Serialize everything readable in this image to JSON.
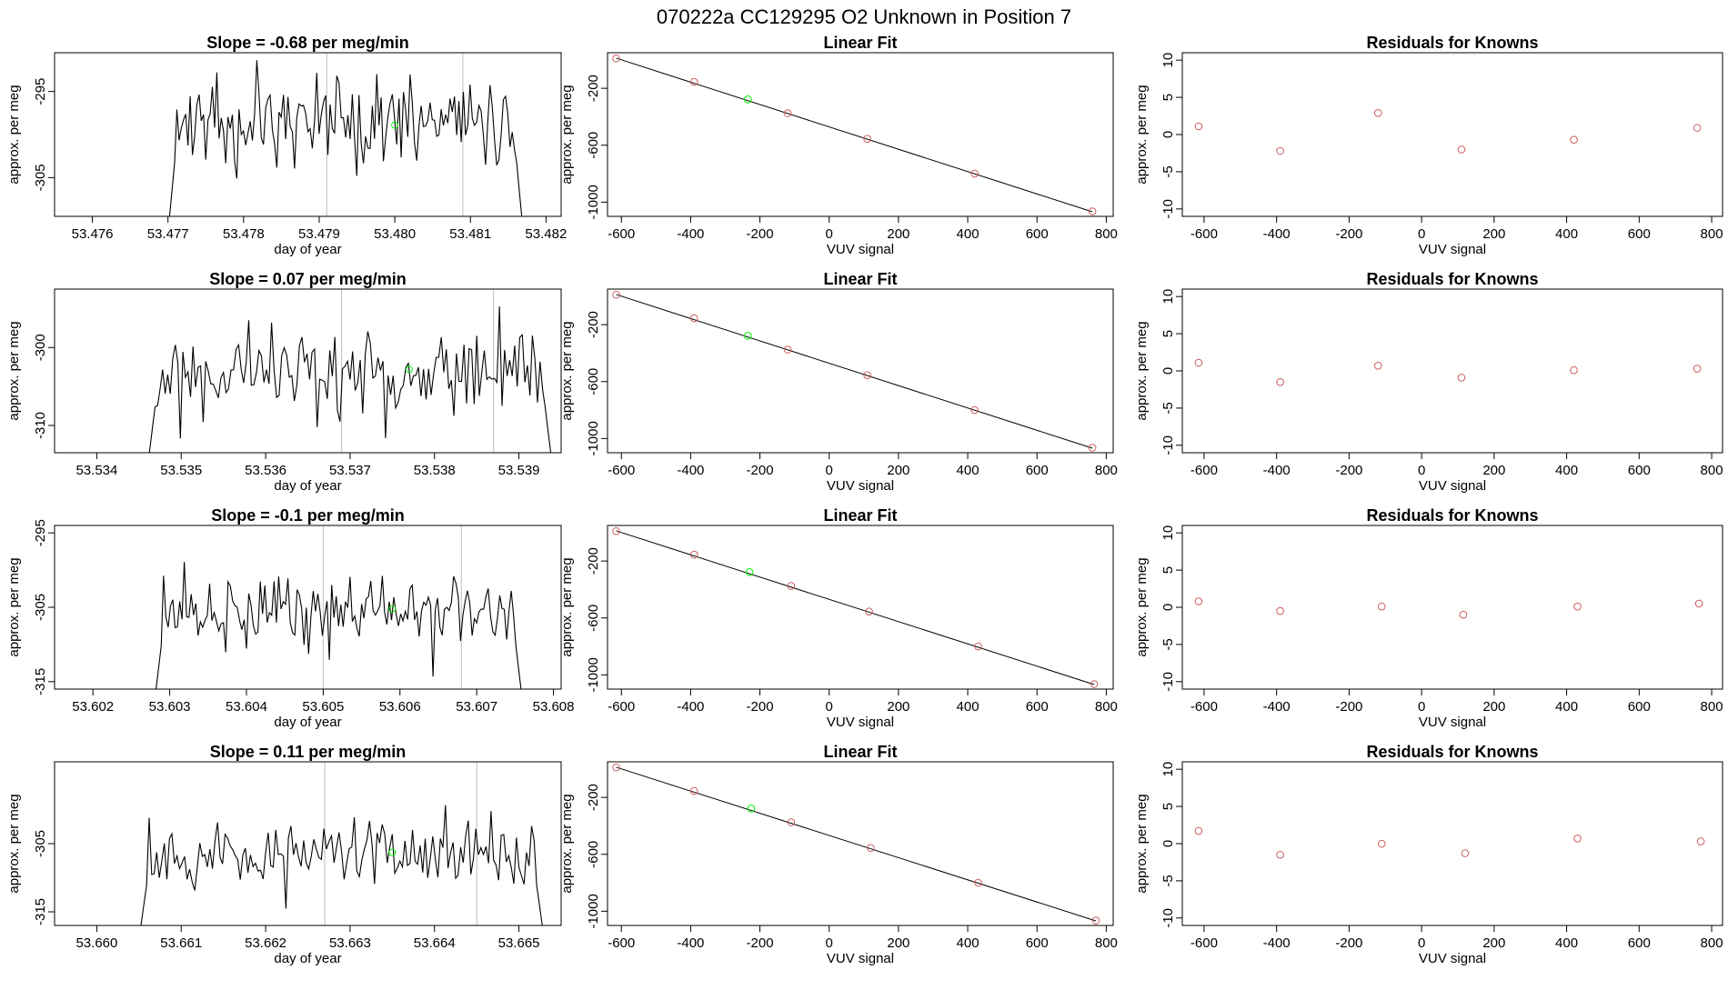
{
  "main_title": "070222a      CC129295   O2 Unknown in Position  7",
  "colors": {
    "line": "#000000",
    "known": "#cd5c5c",
    "unknown": "#00ee00",
    "vline": "#bebebe",
    "axis": "#000000"
  },
  "chart_data": [
    {
      "type": "line",
      "panel": "time-series",
      "row": 1,
      "title": "Slope =  -0.68  per meg/min",
      "xlabel": "day of year",
      "ylabel": "approx. per meg",
      "xlim": [
        53.4755,
        53.4822
      ],
      "ylim": [
        -309.5,
        -290.5
      ],
      "xticks": [
        "53.476",
        "53.477",
        "53.478",
        "53.479",
        "53.480",
        "53.481",
        "53.482"
      ],
      "yticks": [
        "-295",
        "-305"
      ],
      "xstart": 53.477,
      "xend": 53.4817,
      "level": -298.5,
      "noise_amp": 4.5,
      "seed": 11,
      "vlines": [
        53.4791,
        53.4809
      ],
      "green_point": {
        "x": 53.48,
        "y": -298.9
      }
    },
    {
      "type": "scatter+fit",
      "panel": "linear-fit",
      "row": 1,
      "title": "Linear Fit",
      "xlabel": "VUV signal",
      "ylabel": "approx. per meg",
      "xlim": [
        -640,
        820
      ],
      "ylim": [
        -1100,
        50
      ],
      "xticks": [
        "-600",
        "-400",
        "-200",
        "0",
        "200",
        "400",
        "600",
        "800"
      ],
      "yticks": [
        "-200",
        "-600",
        "-1000"
      ],
      "known_points": [
        [
          -615,
          10
        ],
        [
          -390,
          -155
        ],
        [
          -120,
          -375
        ],
        [
          110,
          -555
        ],
        [
          420,
          -800
        ],
        [
          760,
          -1065
        ]
      ],
      "unknown_point": [
        -235,
        -278
      ],
      "fit": [
        [
          -615,
          12
        ],
        [
          760,
          -1068
        ]
      ]
    },
    {
      "type": "scatter",
      "panel": "residuals",
      "row": 1,
      "title": "Residuals for Knowns",
      "xlabel": "VUV signal",
      "ylabel": "approx. per meg",
      "xlim": [
        -660,
        830
      ],
      "ylim": [
        -11,
        11
      ],
      "xticks": [
        "-600",
        "-400",
        "-200",
        "0",
        "200",
        "400",
        "600",
        "800"
      ],
      "yticks": [
        "10",
        "5",
        "0",
        "-5",
        "-10"
      ],
      "points": [
        [
          -615,
          1.1
        ],
        [
          -390,
          -2.2
        ],
        [
          -120,
          2.9
        ],
        [
          110,
          -2.0
        ],
        [
          420,
          -0.7
        ],
        [
          760,
          0.9
        ]
      ]
    },
    {
      "type": "line",
      "panel": "time-series",
      "row": 2,
      "title": "Slope =  0.07  per meg/min",
      "xlabel": "day of year",
      "ylabel": "approx. per meg",
      "xlim": [
        53.5335,
        53.5395
      ],
      "ylim": [
        -313.5,
        -292.5
      ],
      "xticks": [
        "53.534",
        "53.535",
        "53.536",
        "53.537",
        "53.538",
        "53.539"
      ],
      "yticks": [
        "-300",
        "-310"
      ],
      "xstart": 53.5346,
      "xend": 53.5394,
      "level": -303,
      "noise_amp": 4.2,
      "seed": 23,
      "vlines": [
        53.5369,
        53.5387
      ],
      "green_point": {
        "x": 53.5377,
        "y": -302.8
      }
    },
    {
      "type": "scatter+fit",
      "panel": "linear-fit",
      "row": 2,
      "title": "Linear Fit",
      "xlabel": "VUV signal",
      "ylabel": "approx. per meg",
      "xlim": [
        -640,
        820
      ],
      "ylim": [
        -1100,
        50
      ],
      "xticks": [
        "-600",
        "-400",
        "-200",
        "0",
        "200",
        "400",
        "600",
        "800"
      ],
      "yticks": [
        "-200",
        "-600",
        "-1000"
      ],
      "known_points": [
        [
          -615,
          10
        ],
        [
          -390,
          -155
        ],
        [
          -120,
          -375
        ],
        [
          110,
          -555
        ],
        [
          420,
          -800
        ],
        [
          760,
          -1065
        ]
      ],
      "unknown_point": [
        -235,
        -278
      ],
      "fit": [
        [
          -615,
          12
        ],
        [
          760,
          -1068
        ]
      ]
    },
    {
      "type": "scatter",
      "panel": "residuals",
      "row": 2,
      "title": "Residuals for Knowns",
      "xlabel": "VUV signal",
      "ylabel": "approx. per meg",
      "xlim": [
        -660,
        830
      ],
      "ylim": [
        -11,
        11
      ],
      "xticks": [
        "-600",
        "-400",
        "-200",
        "0",
        "200",
        "400",
        "600",
        "800"
      ],
      "yticks": [
        "10",
        "5",
        "0",
        "-5",
        "-10"
      ],
      "points": [
        [
          -615,
          1.1
        ],
        [
          -390,
          -1.5
        ],
        [
          -120,
          0.7
        ],
        [
          110,
          -0.9
        ],
        [
          420,
          0.1
        ],
        [
          760,
          0.3
        ]
      ]
    },
    {
      "type": "line",
      "panel": "time-series",
      "row": 3,
      "title": "Slope =  -0.1  per meg/min",
      "xlabel": "day of year",
      "ylabel": "approx. per meg",
      "xlim": [
        53.6015,
        53.6081
      ],
      "ylim": [
        -316,
        -294
      ],
      "xticks": [
        "53.602",
        "53.603",
        "53.604",
        "53.605",
        "53.606",
        "53.607",
        "53.608"
      ],
      "yticks": [
        "-295",
        "-305",
        "-315"
      ],
      "xstart": 53.6028,
      "xend": 53.6076,
      "level": -305.5,
      "noise_amp": 3.8,
      "seed": 37,
      "vlines": [
        53.605,
        53.6068
      ],
      "green_point": {
        "x": 53.6059,
        "y": -305.2
      }
    },
    {
      "type": "scatter+fit",
      "panel": "linear-fit",
      "row": 3,
      "title": "Linear Fit",
      "xlabel": "VUV signal",
      "ylabel": "approx. per meg",
      "xlim": [
        -640,
        820
      ],
      "ylim": [
        -1100,
        50
      ],
      "xticks": [
        "-600",
        "-400",
        "-200",
        "0",
        "200",
        "400",
        "600",
        "800"
      ],
      "yticks": [
        "-200",
        "-600",
        "-1000"
      ],
      "known_points": [
        [
          -615,
          10
        ],
        [
          -390,
          -155
        ],
        [
          -110,
          -375
        ],
        [
          115,
          -555
        ],
        [
          430,
          -800
        ],
        [
          765,
          -1065
        ]
      ],
      "unknown_point": [
        -230,
        -278
      ],
      "fit": [
        [
          -615,
          12
        ],
        [
          765,
          -1068
        ]
      ]
    },
    {
      "type": "scatter",
      "panel": "residuals",
      "row": 3,
      "title": "Residuals for Knowns",
      "xlabel": "VUV signal",
      "ylabel": "approx. per meg",
      "xlim": [
        -660,
        830
      ],
      "ylim": [
        -11,
        11
      ],
      "xticks": [
        "-600",
        "-400",
        "-200",
        "0",
        "200",
        "400",
        "600",
        "800"
      ],
      "yticks": [
        "10",
        "5",
        "0",
        "-5",
        "-10"
      ],
      "points": [
        [
          -615,
          0.8
        ],
        [
          -390,
          -0.5
        ],
        [
          -110,
          0.1
        ],
        [
          115,
          -1.0
        ],
        [
          430,
          0.1
        ],
        [
          765,
          0.5
        ]
      ]
    },
    {
      "type": "line",
      "panel": "time-series",
      "row": 4,
      "title": "Slope =  0.11  per meg/min",
      "xlabel": "day of year",
      "ylabel": "approx. per meg",
      "xlim": [
        53.6595,
        53.6655
      ],
      "ylim": [
        -317,
        -293
      ],
      "xticks": [
        "53.660",
        "53.661",
        "53.662",
        "53.663",
        "53.664",
        "53.665"
      ],
      "yticks": [
        "-305",
        "-315"
      ],
      "xstart": 53.6605,
      "xend": 53.6653,
      "level": -306.5,
      "noise_amp": 4.0,
      "seed": 53,
      "vlines": [
        53.6627,
        53.6645
      ],
      "green_point": {
        "x": 53.6635,
        "y": -306.3
      }
    },
    {
      "type": "scatter+fit",
      "panel": "linear-fit",
      "row": 4,
      "title": "Linear Fit",
      "xlabel": "VUV signal",
      "ylabel": "approx. per meg",
      "xlim": [
        -640,
        820
      ],
      "ylim": [
        -1100,
        50
      ],
      "xticks": [
        "-600",
        "-400",
        "-200",
        "0",
        "200",
        "400",
        "600",
        "800"
      ],
      "yticks": [
        "-200",
        "-600",
        "-1000"
      ],
      "known_points": [
        [
          -615,
          10
        ],
        [
          -390,
          -155
        ],
        [
          -110,
          -375
        ],
        [
          120,
          -555
        ],
        [
          430,
          -800
        ],
        [
          770,
          -1065
        ]
      ],
      "unknown_point": [
        -225,
        -278
      ],
      "fit": [
        [
          -615,
          12
        ],
        [
          770,
          -1068
        ]
      ]
    },
    {
      "type": "scatter",
      "panel": "residuals",
      "row": 4,
      "title": "Residuals for Knowns",
      "xlabel": "VUV signal",
      "ylabel": "approx. per meg",
      "xlim": [
        -660,
        830
      ],
      "ylim": [
        -11,
        11
      ],
      "xticks": [
        "-600",
        "-400",
        "-200",
        "0",
        "200",
        "400",
        "600",
        "800"
      ],
      "yticks": [
        "10",
        "5",
        "0",
        "-5",
        "-10"
      ],
      "points": [
        [
          -615,
          1.7
        ],
        [
          -390,
          -1.5
        ],
        [
          -110,
          0.0
        ],
        [
          120,
          -1.3
        ],
        [
          430,
          0.7
        ],
        [
          770,
          0.3
        ]
      ]
    }
  ]
}
